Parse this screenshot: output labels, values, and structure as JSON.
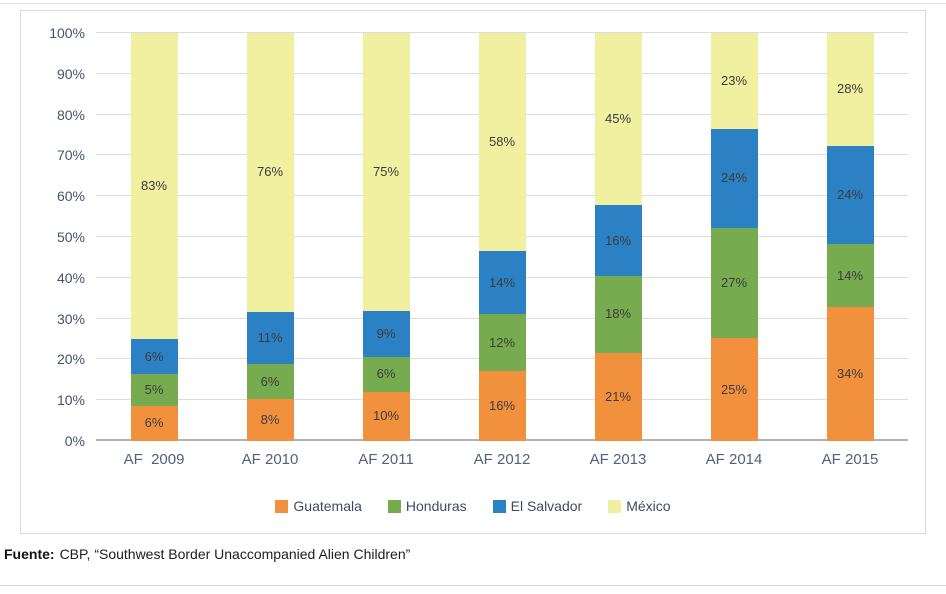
{
  "source": {
    "prefix": "Fuente:",
    "text": "CBP, “Southwest Border Unaccompanied Alien Children”"
  },
  "chart_data": {
    "type": "bar",
    "stacked": true,
    "stacked_100_percent": true,
    "title": "",
    "xlabel": "",
    "ylabel": "",
    "categories": [
      "AF  2009",
      "AF 2010",
      "AF 2011",
      "AF 2012",
      "AF 2013",
      "AF 2014",
      "AF 2015"
    ],
    "series": [
      {
        "name": "Guatemala",
        "color": "#f2913d",
        "values": [
          6,
          8,
          10,
          16,
          21,
          25,
          34
        ]
      },
      {
        "name": "Honduras",
        "color": "#76ab4f",
        "values": [
          5,
          6,
          6,
          12,
          18,
          27,
          14
        ]
      },
      {
        "name": "El Salvador",
        "color": "#2c80c4",
        "values": [
          6,
          11,
          9,
          14,
          16,
          24,
          24
        ]
      },
      {
        "name": "México",
        "color": "#f0f0a0",
        "values": [
          83,
          76,
          75,
          58,
          45,
          23,
          28
        ]
      }
    ],
    "y_ticks": [
      "0%",
      "10%",
      "20%",
      "30%",
      "40%",
      "50%",
      "60%",
      "70%",
      "80%",
      "90%",
      "100%"
    ],
    "ylim": [
      0,
      100
    ],
    "value_suffix": "%",
    "grid": true,
    "legend_position": "bottom",
    "data_labels": true,
    "colors": {
      "gridline": "#dcdcdc",
      "axis_line": "#b3b3b3",
      "tick_text": "#44546a",
      "category_text": "#4f617c",
      "data_label_text": "#3c3c3c"
    }
  }
}
